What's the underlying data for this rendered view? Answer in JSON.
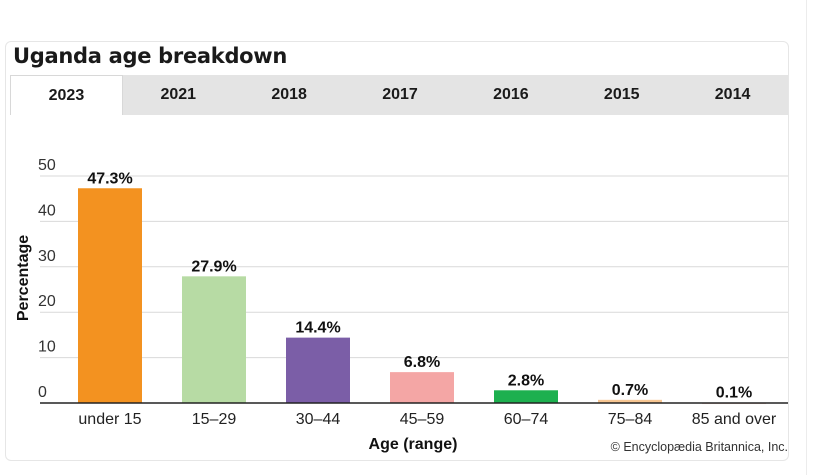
{
  "title": "Uganda age breakdown",
  "tabs": [
    {
      "label": "2023",
      "active": true
    },
    {
      "label": "2021",
      "active": false
    },
    {
      "label": "2018",
      "active": false
    },
    {
      "label": "2017",
      "active": false
    },
    {
      "label": "2016",
      "active": false
    },
    {
      "label": "2015",
      "active": false
    },
    {
      "label": "2014",
      "active": false
    }
  ],
  "credit": "© Encyclopædia Britannica, Inc.",
  "chart_data": {
    "type": "bar",
    "title": "",
    "xlabel": "Age (range)",
    "ylabel": "Percentage",
    "ylim": [
      0,
      50
    ],
    "yticks": [
      0,
      10,
      20,
      30,
      40,
      50
    ],
    "grid": true,
    "categories": [
      "under 15",
      "15–29",
      "30–44",
      "45–59",
      "60–74",
      "75–84",
      "85 and over"
    ],
    "values": [
      47.3,
      27.9,
      14.4,
      6.8,
      2.8,
      0.7,
      0.1
    ],
    "data_labels": [
      "47.3%",
      "27.9%",
      "14.4%",
      "6.8%",
      "2.8%",
      "0.7%",
      "0.1%"
    ],
    "colors": [
      "#f39220",
      "#b7dba4",
      "#7b5ea7",
      "#f4a6a5",
      "#1db04f",
      "#f7c692",
      "#f0d0c8"
    ]
  }
}
